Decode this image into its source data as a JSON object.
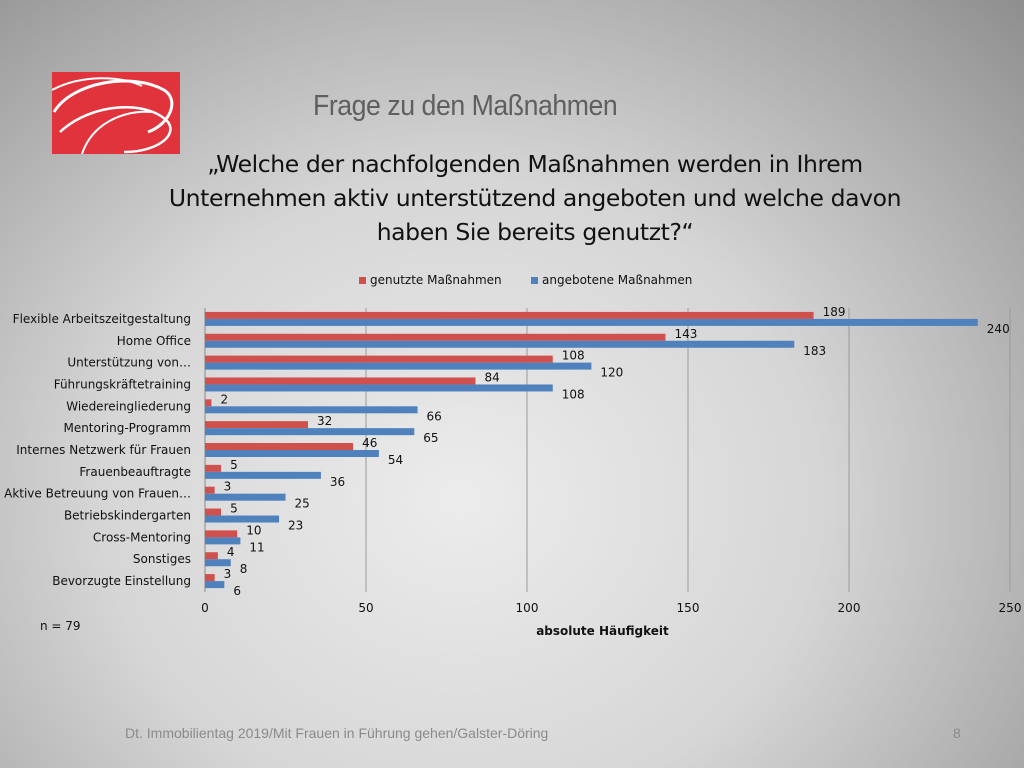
{
  "slide": {
    "title": "Frage zu den Maßnahmen",
    "question_lines": [
      "„Welche der nachfolgenden Maßnahmen werden in Ihrem",
      "Unternehmen aktiv unterstützend angeboten und welche davon",
      "haben Sie bereits genutzt?“"
    ],
    "footer": "Dt. Immobilientag 2019/Mit Frauen in Führung gehen/Galster-Döring",
    "page_number": "8",
    "logo": {
      "icon": "red-logo-icon",
      "color": "#e1333b"
    }
  },
  "chart_data": {
    "type": "bar",
    "orientation": "horizontal",
    "categories": [
      "Flexible Arbeitszeitgestaltung",
      "Home Office",
      "Unterstützung von…",
      "Führungskräftetraining",
      "Wiedereingliederung",
      "Mentoring-Programm",
      "Internes Netzwerk für Frauen",
      "Frauenbeauftragte",
      "Aktive Betreuung von Frauen…",
      "Betriebskindergarten",
      "Cross-Mentoring",
      "Sonstiges",
      "Bevorzugte Einstellung"
    ],
    "series": [
      {
        "name": "genutzte Maßnahmen",
        "color": "#d0504d",
        "values": [
          189,
          143,
          108,
          84,
          2,
          32,
          46,
          5,
          3,
          5,
          10,
          4,
          3
        ]
      },
      {
        "name": "angebotene Maßnahmen",
        "color": "#4f81bd",
        "values": [
          240,
          183,
          120,
          108,
          66,
          65,
          54,
          36,
          25,
          23,
          11,
          8,
          6
        ]
      }
    ],
    "xlabel": "absolute Häufigkeit",
    "ylabel": "",
    "xlim": [
      0,
      250
    ],
    "xticks": [
      0,
      50,
      100,
      150,
      200,
      250
    ],
    "grid": true,
    "legend": "top-center",
    "annotation": "n = 79"
  }
}
